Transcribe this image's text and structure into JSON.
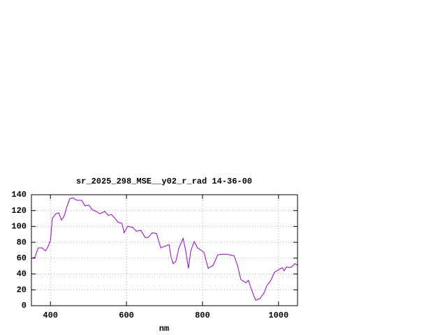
{
  "chart_data": {
    "type": "line",
    "title": "sr_2025_298_MSE__y02_r_rad 14-36-00",
    "x_label": "nm",
    "x": [
      350,
      359,
      368,
      378,
      387,
      392,
      400,
      405,
      414,
      422,
      429,
      436,
      444,
      451,
      460,
      469,
      482,
      491,
      501,
      510,
      521,
      530,
      543,
      552,
      561,
      570,
      579,
      588,
      594,
      603,
      616,
      626,
      638,
      649,
      657,
      668,
      679,
      690,
      701,
      712,
      717,
      723,
      730,
      738,
      749,
      756,
      763,
      769,
      778,
      787,
      796,
      804,
      815,
      828,
      840,
      851,
      864,
      883,
      892,
      901,
      914,
      921,
      932,
      940,
      951,
      962,
      969,
      980,
      989,
      1002,
      1010,
      1015,
      1021,
      1028,
      1035,
      1043,
      1050
    ],
    "series": [
      {
        "name": "sr_2025_298_MSE__y02_r_rad 14-36-00",
        "color": "#9400d3",
        "values": [
          60,
          61,
          73,
          73,
          69,
          73,
          82,
          110,
          116,
          117,
          108,
          113,
          126,
          135,
          136,
          133,
          133,
          126,
          127,
          121,
          119,
          116,
          119,
          114,
          115,
          110,
          105,
          104,
          92,
          100,
          99,
          94,
          95,
          86,
          86,
          92,
          91,
          73,
          75,
          77,
          62,
          53,
          56,
          73,
          85,
          69,
          47,
          69,
          81,
          73,
          70,
          67,
          47,
          51,
          64,
          65,
          65,
          63,
          51,
          33,
          29,
          32,
          16,
          7,
          9,
          16,
          25,
          32,
          42,
          46,
          48,
          44,
          49,
          48,
          49,
          53,
          51
        ]
      }
    ],
    "xlim": [
      350,
      1050
    ],
    "ylim": [
      0,
      140
    ],
    "xticks": [
      400,
      600,
      800,
      1000
    ],
    "yticks": [
      0,
      20,
      40,
      60,
      80,
      100,
      120,
      140
    ],
    "grid": true
  }
}
